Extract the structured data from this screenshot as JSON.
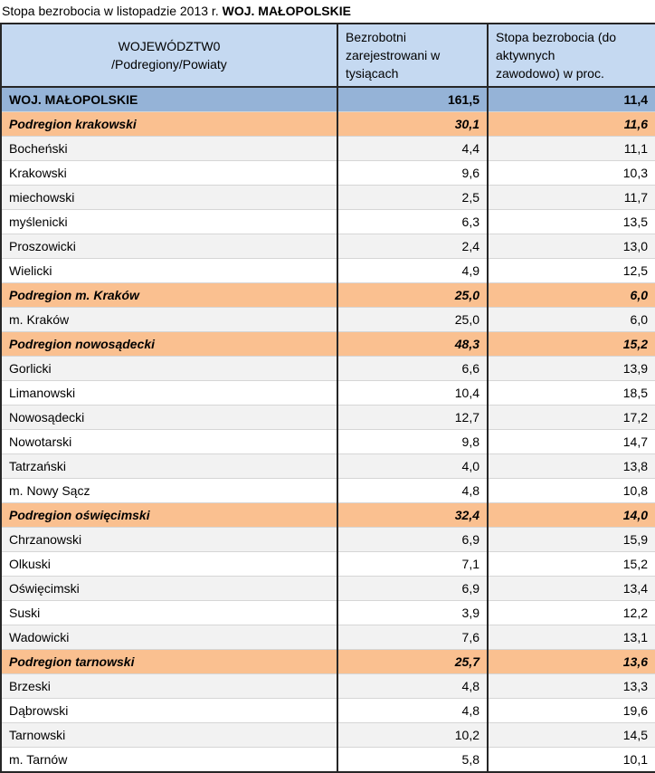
{
  "title": {
    "prefix": "Stopa bezrobocia w listopadzie 2013 r. ",
    "bold": "WOJ. MAŁOPOLSKIE"
  },
  "table": {
    "header": {
      "territory": "WOJEWÓDZTW0\n/Podregiony/Powiaty",
      "unemployed": "Bezrobotni\nzarejestrowani  w\ntysiącach",
      "rate": "Stopa bezrobocia  (do\naktywnych\nzawodowo) w proc."
    },
    "rows": [
      {
        "name": "WOJ. MAŁOPOLSKIE",
        "unemployed": "161,5",
        "rate": "11,4",
        "type": "region"
      },
      {
        "name": "Podregion krakowski",
        "unemployed": "30,1",
        "rate": "11,6",
        "type": "subregion"
      },
      {
        "name": "Bocheński",
        "unemployed": "4,4",
        "rate": "11,1",
        "type": "county"
      },
      {
        "name": "Krakowski",
        "unemployed": "9,6",
        "rate": "10,3",
        "type": "county"
      },
      {
        "name": "miechowski",
        "unemployed": "2,5",
        "rate": "11,7",
        "type": "county"
      },
      {
        "name": "myślenicki",
        "unemployed": "6,3",
        "rate": "13,5",
        "type": "county"
      },
      {
        "name": "Proszowicki",
        "unemployed": "2,4",
        "rate": "13,0",
        "type": "county"
      },
      {
        "name": "Wielicki",
        "unemployed": "4,9",
        "rate": "12,5",
        "type": "county"
      },
      {
        "name": "Podregion m. Kraków",
        "unemployed": "25,0",
        "rate": "6,0",
        "type": "subregion"
      },
      {
        "name": "m. Kraków",
        "unemployed": "25,0",
        "rate": "6,0",
        "type": "county"
      },
      {
        "name": "Podregion nowosądecki",
        "unemployed": "48,3",
        "rate": "15,2",
        "type": "subregion"
      },
      {
        "name": "Gorlicki",
        "unemployed": "6,6",
        "rate": "13,9",
        "type": "county"
      },
      {
        "name": "Limanowski",
        "unemployed": "10,4",
        "rate": "18,5",
        "type": "county"
      },
      {
        "name": "Nowosądecki",
        "unemployed": "12,7",
        "rate": "17,2",
        "type": "county"
      },
      {
        "name": "Nowotarski",
        "unemployed": "9,8",
        "rate": "14,7",
        "type": "county"
      },
      {
        "name": "Tatrzański",
        "unemployed": "4,0",
        "rate": "13,8",
        "type": "county"
      },
      {
        "name": "m. Nowy Sącz",
        "unemployed": "4,8",
        "rate": "10,8",
        "type": "county"
      },
      {
        "name": "Podregion oświęcimski",
        "unemployed": "32,4",
        "rate": "14,0",
        "type": "subregion"
      },
      {
        "name": "Chrzanowski",
        "unemployed": "6,9",
        "rate": "15,9",
        "type": "county"
      },
      {
        "name": "Olkuski",
        "unemployed": "7,1",
        "rate": "15,2",
        "type": "county"
      },
      {
        "name": "Oświęcimski",
        "unemployed": "6,9",
        "rate": "13,4",
        "type": "county"
      },
      {
        "name": "Suski",
        "unemployed": "3,9",
        "rate": "12,2",
        "type": "county"
      },
      {
        "name": "Wadowicki",
        "unemployed": "7,6",
        "rate": "13,1",
        "type": "county"
      },
      {
        "name": "Podregion tarnowski",
        "unemployed": "25,7",
        "rate": "13,6",
        "type": "subregion"
      },
      {
        "name": "Brzeski",
        "unemployed": "4,8",
        "rate": "13,3",
        "type": "county"
      },
      {
        "name": "Dąbrowski",
        "unemployed": "4,8",
        "rate": "19,6",
        "type": "county"
      },
      {
        "name": "Tarnowski",
        "unemployed": "10,2",
        "rate": "14,5",
        "type": "county"
      },
      {
        "name": "m. Tarnów",
        "unemployed": "5,8",
        "rate": "10,1",
        "type": "county"
      }
    ]
  },
  "colors": {
    "border_dark": "#262626",
    "header_blue": "#c5d9f1",
    "region_blue": "#95b3d7",
    "subregion_orange": "#fac090",
    "shade_gray": "#f2f2f2",
    "row_line": "#d6d6d6"
  }
}
